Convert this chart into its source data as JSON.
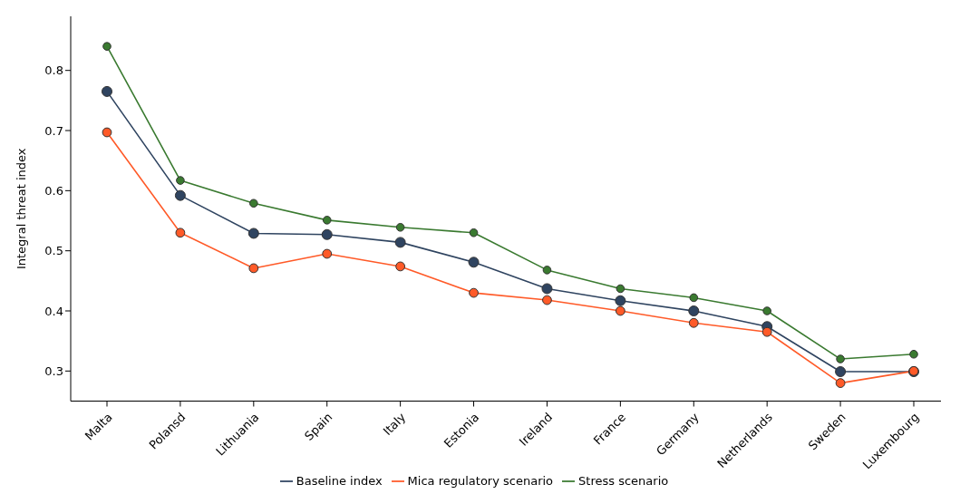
{
  "chart_data": {
    "type": "line",
    "ylabel": "Integral threat index",
    "categories": [
      "Malta",
      "Polansd",
      "Lithuania",
      "Spain",
      "Italy",
      "Estonia",
      "Ireland",
      "France",
      "Germany",
      "Netherlands",
      "Sweden",
      "Luxembourg"
    ],
    "series": [
      {
        "name": "Baseline index",
        "color": "#2f4460",
        "values": [
          0.765,
          0.592,
          0.529,
          0.527,
          0.514,
          0.481,
          0.437,
          0.417,
          0.4,
          0.374,
          0.299,
          0.299
        ]
      },
      {
        "name": "Mica regulatory scenario",
        "color": "#ff5a28",
        "values": [
          0.697,
          0.53,
          0.471,
          0.495,
          0.474,
          0.43,
          0.418,
          0.4,
          0.38,
          0.365,
          0.28,
          0.3
        ]
      },
      {
        "name": "Stress scenario",
        "color": "#3a7a30",
        "values": [
          0.84,
          0.617,
          0.579,
          0.551,
          0.539,
          0.53,
          0.468,
          0.437,
          0.422,
          0.4,
          0.32,
          0.328
        ]
      }
    ],
    "ylim": [
      0.25,
      0.89
    ],
    "yticks": [
      0.3,
      0.4,
      0.5,
      0.6,
      0.7,
      0.8
    ],
    "grid": false,
    "legend": "bottom",
    "marker": "circle",
    "line_style": "solid"
  }
}
